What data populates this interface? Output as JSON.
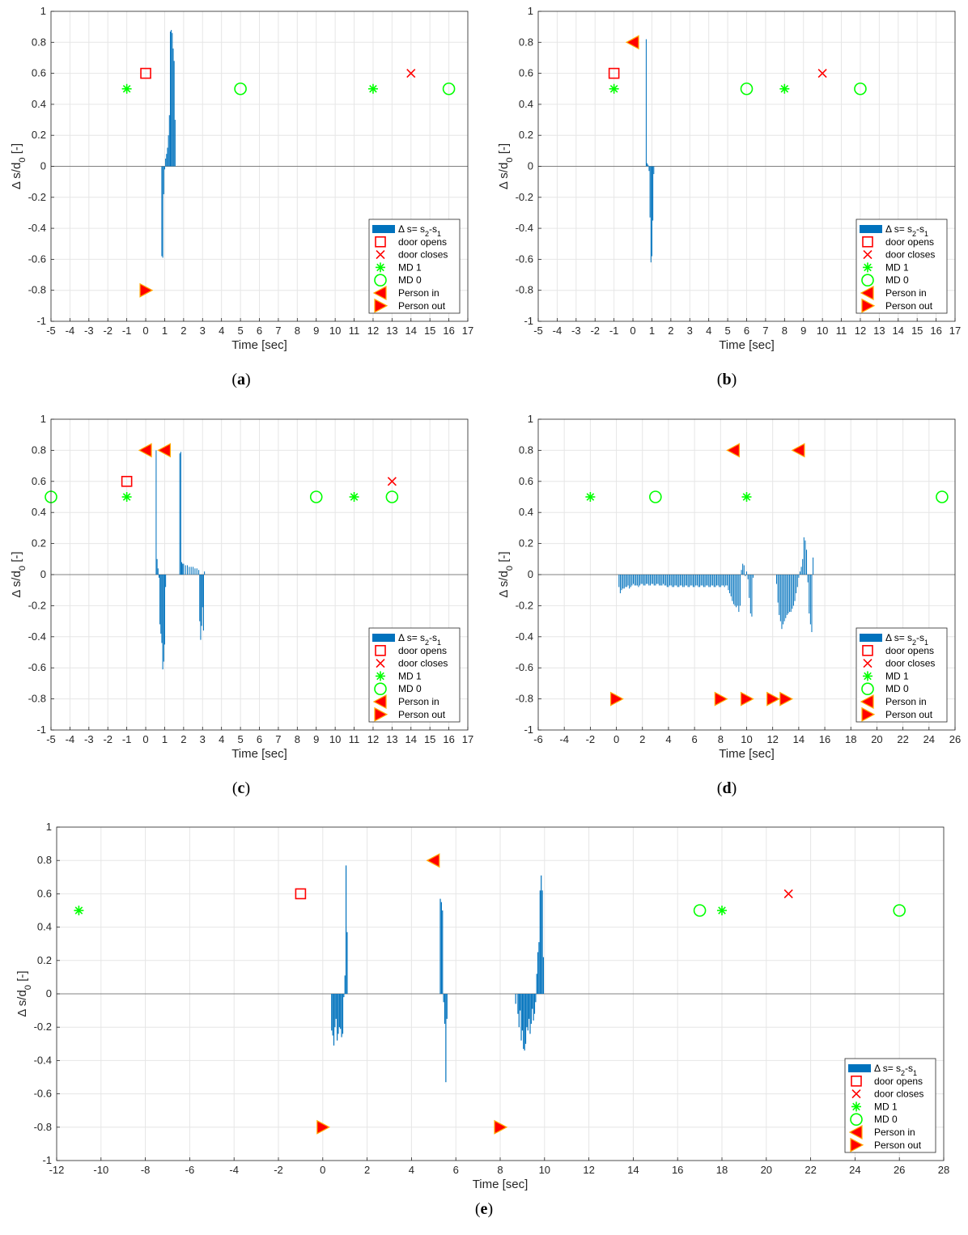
{
  "figure": {
    "ylabel": "Δ s/d0 [-]",
    "xlabel": "Time [sec]",
    "legend": [
      {
        "label": "Δ s= s2-s1",
        "marker": "bar"
      },
      {
        "label": "door opens",
        "marker": "square"
      },
      {
        "label": "door closes",
        "marker": "x"
      },
      {
        "label": "MD 1",
        "marker": "star"
      },
      {
        "label": "MD 0",
        "marker": "circle"
      },
      {
        "label": "Person in",
        "marker": "tri-left"
      },
      {
        "label": "Person out",
        "marker": "tri-right"
      }
    ],
    "colors": {
      "bar": "#0072bd",
      "door": "#ff0000",
      "md": "#00ff00",
      "person_fill": "#ff0000",
      "person_edge": "#ffaa00"
    }
  },
  "chart_data": [
    {
      "type": "bar",
      "caption": "(a)",
      "xlim": [
        -5,
        17
      ],
      "ylim": [
        -1,
        1
      ],
      "xticks": [
        -5,
        -4,
        -3,
        -2,
        -1,
        0,
        1,
        2,
        3,
        4,
        5,
        6,
        7,
        8,
        9,
        10,
        11,
        12,
        13,
        14,
        15,
        16,
        17
      ],
      "bars": [
        [
          0.85,
          -0.58
        ],
        [
          0.9,
          -0.59
        ],
        [
          0.95,
          -0.18
        ],
        [
          1.0,
          -0.02
        ],
        [
          1.05,
          0.05
        ],
        [
          1.1,
          0.08
        ],
        [
          1.15,
          0.12
        ],
        [
          1.2,
          0.2
        ],
        [
          1.25,
          0.33
        ],
        [
          1.3,
          0.87
        ],
        [
          1.35,
          0.88
        ],
        [
          1.4,
          0.86
        ],
        [
          1.45,
          0.76
        ],
        [
          1.5,
          0.68
        ],
        [
          1.55,
          0.3
        ]
      ],
      "door_opens": [
        [
          0,
          0.6
        ]
      ],
      "door_closes": [
        [
          14,
          0.6
        ]
      ],
      "md1": [
        [
          -1,
          0.5
        ],
        [
          12,
          0.5
        ]
      ],
      "md0": [
        [
          5,
          0.5
        ],
        [
          16,
          0.5
        ]
      ],
      "person_in": [],
      "person_out": [
        [
          0,
          -0.8
        ]
      ]
    },
    {
      "type": "bar",
      "caption": "(b)",
      "xlim": [
        -5,
        17
      ],
      "ylim": [
        -1,
        1
      ],
      "xticks": [
        -5,
        -4,
        -3,
        -2,
        -1,
        0,
        1,
        2,
        3,
        4,
        5,
        6,
        7,
        8,
        9,
        10,
        11,
        12,
        13,
        14,
        15,
        16,
        17
      ],
      "bars": [
        [
          0.7,
          0.82
        ],
        [
          0.75,
          0.02
        ],
        [
          0.8,
          0.01
        ],
        [
          0.85,
          -0.03
        ],
        [
          0.9,
          -0.33
        ],
        [
          0.95,
          -0.62
        ],
        [
          1.0,
          -0.58
        ],
        [
          1.05,
          -0.35
        ],
        [
          1.1,
          -0.05
        ]
      ],
      "door_opens": [
        [
          -1,
          0.6
        ]
      ],
      "door_closes": [
        [
          10,
          0.6
        ]
      ],
      "md1": [
        [
          -1,
          0.5
        ],
        [
          8,
          0.5
        ]
      ],
      "md0": [
        [
          6,
          0.5
        ],
        [
          12,
          0.5
        ]
      ],
      "person_in": [
        [
          0,
          0.8
        ]
      ],
      "person_out": []
    },
    {
      "type": "bar",
      "caption": "(c)",
      "xlim": [
        -5,
        17
      ],
      "ylim": [
        -1,
        1
      ],
      "xticks": [
        -5,
        -4,
        -3,
        -2,
        -1,
        0,
        1,
        2,
        3,
        4,
        5,
        6,
        7,
        8,
        9,
        10,
        11,
        12,
        13,
        14,
        15,
        16,
        17
      ],
      "bars": [
        [
          0.55,
          0.8
        ],
        [
          0.6,
          0.1
        ],
        [
          0.65,
          0.04
        ],
        [
          0.7,
          -0.02
        ],
        [
          0.75,
          -0.32
        ],
        [
          0.8,
          -0.38
        ],
        [
          0.85,
          -0.44
        ],
        [
          0.9,
          -0.61
        ],
        [
          0.95,
          -0.56
        ],
        [
          1.0,
          -0.45
        ],
        [
          1.05,
          -0.08
        ],
        [
          1.8,
          0.78
        ],
        [
          1.85,
          0.79
        ],
        [
          1.9,
          0.08
        ],
        [
          1.95,
          0.07
        ],
        [
          2.0,
          0.07
        ],
        [
          2.1,
          0.06
        ],
        [
          2.2,
          0.06
        ],
        [
          2.3,
          0.05
        ],
        [
          2.4,
          0.05
        ],
        [
          2.5,
          0.05
        ],
        [
          2.6,
          0.04
        ],
        [
          2.7,
          0.04
        ],
        [
          2.8,
          0.03
        ],
        [
          2.85,
          -0.3
        ],
        [
          2.9,
          -0.42
        ],
        [
          2.95,
          -0.33
        ],
        [
          3.0,
          -0.21
        ],
        [
          3.05,
          -0.36
        ],
        [
          3.1,
          0.02
        ]
      ],
      "door_opens": [
        [
          -1,
          0.6
        ]
      ],
      "door_closes": [
        [
          13,
          0.6
        ]
      ],
      "md1": [
        [
          -1,
          0.5
        ],
        [
          11,
          0.5
        ]
      ],
      "md0": [
        [
          -5,
          0.5
        ],
        [
          9,
          0.5
        ],
        [
          13,
          0.5
        ]
      ],
      "person_in": [
        [
          0,
          0.8
        ],
        [
          1,
          0.8
        ]
      ],
      "person_out": []
    },
    {
      "type": "bar",
      "caption": "(d)",
      "xlim": [
        -6,
        26
      ],
      "ylim": [
        -1,
        1
      ],
      "xticks": [
        -6,
        -4,
        -2,
        0,
        2,
        4,
        6,
        8,
        10,
        12,
        14,
        16,
        18,
        20,
        22,
        24,
        26
      ],
      "bars": [
        [
          0.2,
          -0.08
        ],
        [
          0.3,
          -0.12
        ],
        [
          0.4,
          -0.1
        ],
        [
          0.5,
          -0.09
        ],
        [
          0.6,
          -0.09
        ],
        [
          0.7,
          -0.08
        ],
        [
          0.8,
          -0.08
        ],
        [
          0.9,
          -0.07
        ],
        [
          1.0,
          -0.09
        ],
        [
          1.1,
          -0.08
        ],
        [
          1.2,
          -0.07
        ],
        [
          1.3,
          -0.06
        ],
        [
          1.4,
          -0.07
        ],
        [
          1.5,
          -0.07
        ],
        [
          1.6,
          -0.07
        ],
        [
          1.7,
          -0.08
        ],
        [
          1.8,
          -0.07
        ],
        [
          1.9,
          -0.06
        ],
        [
          2.0,
          -0.06
        ],
        [
          2.1,
          -0.07
        ],
        [
          2.2,
          -0.07
        ],
        [
          2.3,
          -0.06
        ],
        [
          2.4,
          -0.06
        ],
        [
          2.5,
          -0.07
        ],
        [
          2.6,
          -0.07
        ],
        [
          2.7,
          -0.06
        ],
        [
          2.8,
          -0.06
        ],
        [
          2.9,
          -0.07
        ],
        [
          3.0,
          -0.07
        ],
        [
          3.1,
          -0.06
        ],
        [
          3.2,
          -0.06
        ],
        [
          3.3,
          -0.07
        ],
        [
          3.4,
          -0.07
        ],
        [
          3.5,
          -0.07
        ],
        [
          3.6,
          -0.06
        ],
        [
          3.7,
          -0.07
        ],
        [
          3.8,
          -0.07
        ],
        [
          3.9,
          -0.08
        ],
        [
          4.0,
          -0.08
        ],
        [
          4.1,
          -0.07
        ],
        [
          4.2,
          -0.07
        ],
        [
          4.3,
          -0.08
        ],
        [
          4.4,
          -0.08
        ],
        [
          4.5,
          -0.07
        ],
        [
          4.6,
          -0.07
        ],
        [
          4.7,
          -0.08
        ],
        [
          4.8,
          -0.08
        ],
        [
          4.9,
          -0.07
        ],
        [
          5.0,
          -0.07
        ],
        [
          5.1,
          -0.08
        ],
        [
          5.2,
          -0.08
        ],
        [
          5.3,
          -0.07
        ],
        [
          5.4,
          -0.07
        ],
        [
          5.5,
          -0.08
        ],
        [
          5.6,
          -0.08
        ],
        [
          5.7,
          -0.07
        ],
        [
          5.8,
          -0.07
        ],
        [
          5.9,
          -0.08
        ],
        [
          6.0,
          -0.08
        ],
        [
          6.1,
          -0.07
        ],
        [
          6.2,
          -0.07
        ],
        [
          6.3,
          -0.08
        ],
        [
          6.4,
          -0.08
        ],
        [
          6.5,
          -0.07
        ],
        [
          6.6,
          -0.07
        ],
        [
          6.7,
          -0.08
        ],
        [
          6.8,
          -0.08
        ],
        [
          6.9,
          -0.07
        ],
        [
          7.0,
          -0.07
        ],
        [
          7.1,
          -0.08
        ],
        [
          7.2,
          -0.08
        ],
        [
          7.3,
          -0.07
        ],
        [
          7.4,
          -0.07
        ],
        [
          7.5,
          -0.08
        ],
        [
          7.6,
          -0.08
        ],
        [
          7.7,
          -0.07
        ],
        [
          7.8,
          -0.07
        ],
        [
          7.9,
          -0.08
        ],
        [
          8.0,
          -0.08
        ],
        [
          8.1,
          -0.07
        ],
        [
          8.2,
          -0.07
        ],
        [
          8.3,
          -0.08
        ],
        [
          8.4,
          -0.07
        ],
        [
          8.5,
          -0.07
        ],
        [
          8.6,
          -0.1
        ],
        [
          8.7,
          -0.12
        ],
        [
          8.8,
          -0.14
        ],
        [
          8.9,
          -0.17
        ],
        [
          9.0,
          -0.19
        ],
        [
          9.1,
          -0.2
        ],
        [
          9.2,
          -0.21
        ],
        [
          9.3,
          -0.2
        ],
        [
          9.4,
          -0.24
        ],
        [
          9.5,
          -0.2
        ],
        [
          9.6,
          0.03
        ],
        [
          9.7,
          0.07
        ],
        [
          9.8,
          0.06
        ],
        [
          9.9,
          -0.01
        ],
        [
          10.0,
          0.02
        ],
        [
          10.1,
          -0.03
        ],
        [
          10.2,
          -0.15
        ],
        [
          10.3,
          -0.25
        ],
        [
          10.4,
          -0.27
        ],
        [
          10.5,
          -0.02
        ],
        [
          12.3,
          -0.06
        ],
        [
          12.4,
          -0.18
        ],
        [
          12.5,
          -0.26
        ],
        [
          12.6,
          -0.3
        ],
        [
          12.7,
          -0.35
        ],
        [
          12.8,
          -0.32
        ],
        [
          12.9,
          -0.3
        ],
        [
          13.0,
          -0.28
        ],
        [
          13.1,
          -0.26
        ],
        [
          13.2,
          -0.25
        ],
        [
          13.3,
          -0.24
        ],
        [
          13.4,
          -0.24
        ],
        [
          13.5,
          -0.22
        ],
        [
          13.6,
          -0.2
        ],
        [
          13.7,
          -0.17
        ],
        [
          13.8,
          -0.12
        ],
        [
          13.9,
          -0.08
        ],
        [
          14.0,
          -0.02
        ],
        [
          14.1,
          0.02
        ],
        [
          14.2,
          0.05
        ],
        [
          14.3,
          0.1
        ],
        [
          14.4,
          0.24
        ],
        [
          14.5,
          0.22
        ],
        [
          14.6,
          0.16
        ],
        [
          14.7,
          -0.05
        ],
        [
          14.8,
          -0.25
        ],
        [
          14.9,
          -0.32
        ],
        [
          15.0,
          -0.37
        ],
        [
          15.1,
          0.11
        ]
      ],
      "door_opens": [],
      "door_closes": [],
      "md1": [
        [
          -2,
          0.5
        ],
        [
          10,
          0.5
        ]
      ],
      "md0": [
        [
          3,
          0.5
        ],
        [
          25,
          0.5
        ]
      ],
      "person_in": [
        [
          9,
          0.8
        ],
        [
          14,
          0.8
        ]
      ],
      "person_out": [
        [
          0,
          -0.8
        ],
        [
          8,
          -0.8
        ],
        [
          10,
          -0.8
        ],
        [
          12,
          -0.8
        ],
        [
          13,
          -0.8
        ]
      ]
    },
    {
      "type": "bar",
      "caption": "(e)",
      "xlim": [
        -12,
        28
      ],
      "ylim": [
        -1,
        1
      ],
      "xticks": [
        -12,
        -10,
        -8,
        -6,
        -4,
        -2,
        0,
        2,
        4,
        6,
        8,
        10,
        12,
        14,
        16,
        18,
        20,
        22,
        24,
        26,
        28
      ],
      "bars": [
        [
          0.4,
          -0.22
        ],
        [
          0.45,
          -0.25
        ],
        [
          0.5,
          -0.31
        ],
        [
          0.55,
          -0.2
        ],
        [
          0.6,
          -0.15
        ],
        [
          0.65,
          -0.28
        ],
        [
          0.7,
          -0.24
        ],
        [
          0.75,
          -0.2
        ],
        [
          0.8,
          -0.21
        ],
        [
          0.85,
          -0.26
        ],
        [
          0.9,
          -0.24
        ],
        [
          0.95,
          -0.02
        ],
        [
          1.0,
          0.11
        ],
        [
          1.05,
          0.77
        ],
        [
          1.1,
          0.37
        ],
        [
          5.3,
          0.57
        ],
        [
          5.35,
          0.55
        ],
        [
          5.4,
          0.5
        ],
        [
          5.45,
          -0.05
        ],
        [
          5.5,
          -0.18
        ],
        [
          5.55,
          -0.53
        ],
        [
          5.6,
          -0.15
        ],
        [
          8.7,
          -0.06
        ],
        [
          8.8,
          -0.12
        ],
        [
          8.85,
          -0.2
        ],
        [
          8.9,
          -0.1
        ],
        [
          8.95,
          -0.28
        ],
        [
          9.0,
          -0.22
        ],
        [
          9.05,
          -0.33
        ],
        [
          9.1,
          -0.34
        ],
        [
          9.15,
          -0.3
        ],
        [
          9.2,
          -0.2
        ],
        [
          9.25,
          -0.22
        ],
        [
          9.3,
          -0.15
        ],
        [
          9.35,
          -0.24
        ],
        [
          9.4,
          -0.18
        ],
        [
          9.45,
          -0.09
        ],
        [
          9.5,
          -0.16
        ],
        [
          9.55,
          -0.12
        ],
        [
          9.6,
          -0.05
        ],
        [
          9.65,
          0.12
        ],
        [
          9.7,
          0.25
        ],
        [
          9.75,
          0.31
        ],
        [
          9.8,
          0.62
        ],
        [
          9.85,
          0.71
        ],
        [
          9.9,
          0.62
        ],
        [
          9.95,
          0.22
        ]
      ],
      "door_opens": [
        [
          -1,
          0.6
        ]
      ],
      "door_closes": [
        [
          21,
          0.6
        ]
      ],
      "md1": [
        [
          -11,
          0.5
        ],
        [
          18,
          0.5
        ]
      ],
      "md0": [
        [
          17,
          0.5
        ],
        [
          26,
          0.5
        ]
      ],
      "person_in": [
        [
          5,
          0.8
        ]
      ],
      "person_out": [
        [
          0,
          -0.8
        ],
        [
          8,
          -0.8
        ]
      ]
    }
  ]
}
